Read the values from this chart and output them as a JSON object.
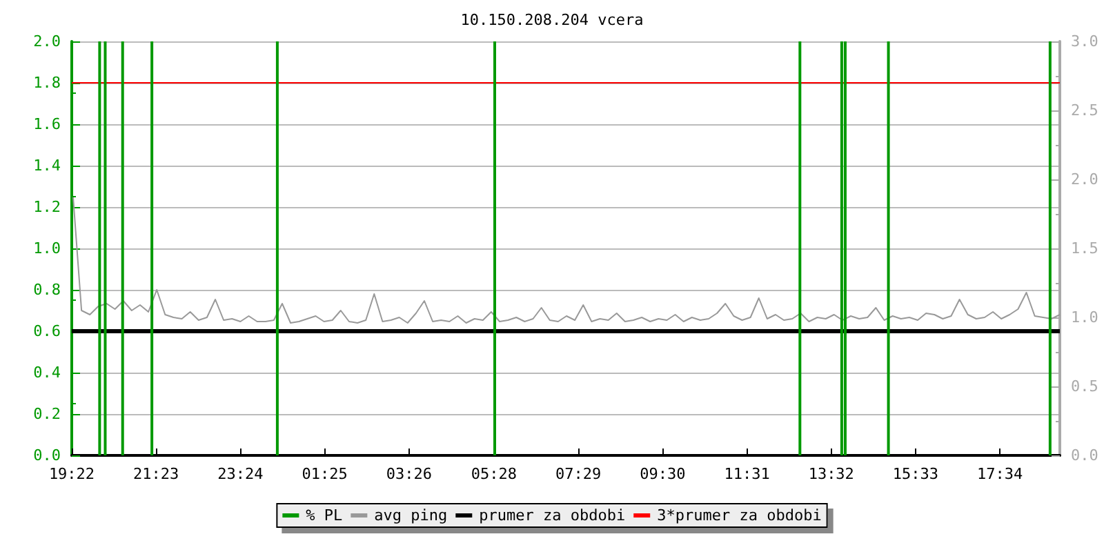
{
  "chart_data": {
    "type": "line",
    "title": "10.150.208.204 vcera",
    "xlim": [
      "--01-01T19:22",
      "--01-02T19:00"
    ],
    "xticks": [
      {
        "value": "--01-01T19:22",
        "label": "19:22"
      },
      {
        "value": "--01-01T21:23",
        "label": "21:23"
      },
      {
        "value": "--01-01T23:24",
        "label": "23:24"
      },
      {
        "value": "--01-02T01:25",
        "label": "01:25"
      },
      {
        "value": "--01-02T03:26",
        "label": "03:26"
      },
      {
        "value": "--01-02T05:28",
        "label": "05:28"
      },
      {
        "value": "--01-02T07:29",
        "label": "07:29"
      },
      {
        "value": "--01-02T09:30",
        "label": "09:30"
      },
      {
        "value": "--01-02T11:31",
        "label": "11:31"
      },
      {
        "value": "--01-02T13:32",
        "label": "13:32"
      },
      {
        "value": "--01-02T15:33",
        "label": "15:33"
      },
      {
        "value": "--01-02T17:34",
        "label": "17:34"
      }
    ],
    "ylim": [
      0,
      2.0
    ],
    "yticks": [
      {
        "value": 0,
        "label": "0.0"
      },
      {
        "value": 0.2,
        "label": "0.2"
      },
      {
        "value": 0.4,
        "label": "0.4"
      },
      {
        "value": 0.6,
        "label": "0.6"
      },
      {
        "value": 0.8,
        "label": "0.8"
      },
      {
        "value": 1.0,
        "label": "1.0"
      },
      {
        "value": 1.2,
        "label": "1.2"
      },
      {
        "value": 1.4,
        "label": "1.4"
      },
      {
        "value": 1.6,
        "label": "1.6"
      },
      {
        "value": 1.8,
        "label": "1.8"
      },
      {
        "value": 2.0,
        "label": "2.0"
      }
    ],
    "y2lim": [
      0,
      3.0
    ],
    "y2ticks": [
      {
        "value": 0,
        "label": "0.0"
      },
      {
        "value": 0.5,
        "label": "0.5"
      },
      {
        "value": 1.0,
        "label": "1.0"
      },
      {
        "value": 1.5,
        "label": "1.5"
      },
      {
        "value": 2.0,
        "label": "2.0"
      },
      {
        "value": 2.5,
        "label": "2.5"
      },
      {
        "value": 3.0,
        "label": "3.0"
      }
    ],
    "grid": "y",
    "legend": "bottom",
    "marker": "none",
    "line_style": "solid",
    "series": [
      {
        "name": "% PL",
        "type": "bar",
        "color": "#009900",
        "x": [
          "--01-01T20:02",
          "--01-01T20:10",
          "--01-01T20:35",
          "--01-01T21:17",
          "--01-02T00:17",
          "--01-02T05:29",
          "--01-02T12:47",
          "--01-02T13:47",
          "--01-02T13:52",
          "--01-02T14:54",
          "--01-02T18:46"
        ],
        "values": [
          2.0,
          2.0,
          2.0,
          2.0,
          2.0,
          2.0,
          2.0,
          2.0,
          2.0,
          2.0,
          2.0
        ]
      },
      {
        "name": "avg ping",
        "axis": "y2",
        "color": "#999999",
        "x": [
          "--01-01T19:24",
          "--01-01T19:36",
          "--01-01T19:48",
          "--01-01T20:00",
          "--01-01T20:12",
          "--01-01T20:24",
          "--01-01T20:36",
          "--01-01T20:48",
          "--01-01T21:00",
          "--01-01T21:12",
          "--01-01T21:24",
          "--01-01T21:36",
          "--01-01T21:48",
          "--01-01T22:00",
          "--01-01T22:12",
          "--01-01T22:24",
          "--01-01T22:36",
          "--01-01T22:48",
          "--01-01T23:00",
          "--01-01T23:12",
          "--01-01T23:24",
          "--01-01T23:36",
          "--01-01T23:48",
          "--01-02T00:00",
          "--01-02T00:12",
          "--01-02T00:24",
          "--01-02T00:36",
          "--01-02T00:48",
          "--01-02T01:00",
          "--01-02T01:12",
          "--01-02T01:24",
          "--01-02T01:36",
          "--01-02T01:48",
          "--01-02T02:00",
          "--01-02T02:12",
          "--01-02T02:24",
          "--01-02T02:36",
          "--01-02T02:48",
          "--01-02T03:00",
          "--01-02T03:12",
          "--01-02T03:24",
          "--01-02T03:36",
          "--01-02T03:48",
          "--01-02T04:00",
          "--01-02T04:12",
          "--01-02T04:24",
          "--01-02T04:36",
          "--01-02T04:48",
          "--01-02T05:00",
          "--01-02T05:12",
          "--01-02T05:24",
          "--01-02T05:36",
          "--01-02T05:48",
          "--01-02T06:00",
          "--01-02T06:12",
          "--01-02T06:24",
          "--01-02T06:36",
          "--01-02T06:48",
          "--01-02T07:00",
          "--01-02T07:12",
          "--01-02T07:24",
          "--01-02T07:36",
          "--01-02T07:48",
          "--01-02T08:00",
          "--01-02T08:12",
          "--01-02T08:24",
          "--01-02T08:36",
          "--01-02T08:48",
          "--01-02T09:00",
          "--01-02T09:12",
          "--01-02T09:24",
          "--01-02T09:36",
          "--01-02T09:48",
          "--01-02T10:00",
          "--01-02T10:12",
          "--01-02T10:24",
          "--01-02T10:36",
          "--01-02T10:48",
          "--01-02T11:00",
          "--01-02T11:12",
          "--01-02T11:24",
          "--01-02T11:36",
          "--01-02T11:48",
          "--01-02T12:00",
          "--01-02T12:12",
          "--01-02T12:24",
          "--01-02T12:36",
          "--01-02T12:48",
          "--01-02T13:00",
          "--01-02T13:12",
          "--01-02T13:24",
          "--01-02T13:36",
          "--01-02T13:48",
          "--01-02T14:00",
          "--01-02T14:12",
          "--01-02T14:24",
          "--01-02T14:36",
          "--01-02T14:48",
          "--01-02T15:00",
          "--01-02T15:12",
          "--01-02T15:24",
          "--01-02T15:36",
          "--01-02T15:48",
          "--01-02T16:00",
          "--01-02T16:12",
          "--01-02T16:24",
          "--01-02T16:36",
          "--01-02T16:48",
          "--01-02T17:00",
          "--01-02T17:12",
          "--01-02T17:24",
          "--01-02T17:36",
          "--01-02T17:48",
          "--01-02T18:00",
          "--01-02T18:12",
          "--01-02T18:24",
          "--01-02T18:36",
          "--01-02T18:48",
          "--01-02T19:00"
        ],
        "values": [
          1.87,
          1.05,
          1.02,
          1.08,
          1.1,
          1.06,
          1.12,
          1.05,
          1.09,
          1.04,
          1.2,
          1.02,
          1.0,
          0.99,
          1.04,
          0.98,
          1.0,
          1.13,
          0.98,
          0.99,
          0.97,
          1.01,
          0.97,
          0.97,
          0.98,
          1.1,
          0.96,
          0.97,
          0.99,
          1.01,
          0.97,
          0.98,
          1.05,
          0.97,
          0.96,
          0.98,
          1.17,
          0.97,
          0.98,
          1.0,
          0.96,
          1.03,
          1.12,
          0.97,
          0.98,
          0.97,
          1.01,
          0.96,
          0.99,
          0.98,
          1.04,
          0.97,
          0.98,
          1.0,
          0.97,
          0.99,
          1.07,
          0.98,
          0.97,
          1.01,
          0.98,
          1.09,
          0.97,
          0.99,
          0.98,
          1.03,
          0.97,
          0.98,
          1.0,
          0.97,
          0.99,
          0.98,
          1.02,
          0.97,
          1.0,
          0.98,
          0.99,
          1.03,
          1.1,
          1.01,
          0.98,
          1.0,
          1.14,
          0.99,
          1.02,
          0.98,
          0.99,
          1.03,
          0.97,
          1.0,
          0.99,
          1.02,
          0.98,
          1.01,
          0.99,
          1.0,
          1.07,
          0.98,
          1.01,
          0.99,
          1.0,
          0.98,
          1.03,
          1.02,
          0.99,
          1.01,
          1.13,
          1.02,
          0.99,
          1.0,
          1.04,
          0.99,
          1.02,
          1.06,
          1.18,
          1.01,
          1.0,
          0.99,
          1.02
        ]
      },
      {
        "name": "prumer za obdobi",
        "axis": "y2",
        "color": "#000000",
        "x": [
          "--01-01T19:22",
          "--01-02T19:00"
        ],
        "values": [
          0.9,
          0.9
        ]
      },
      {
        "name": "3*prumer za obdobi",
        "axis": "y2",
        "color": "#ff0000",
        "x": [
          "--01-01T19:22",
          "--01-02T19:00"
        ],
        "values": [
          2.7,
          2.7
        ]
      }
    ]
  }
}
